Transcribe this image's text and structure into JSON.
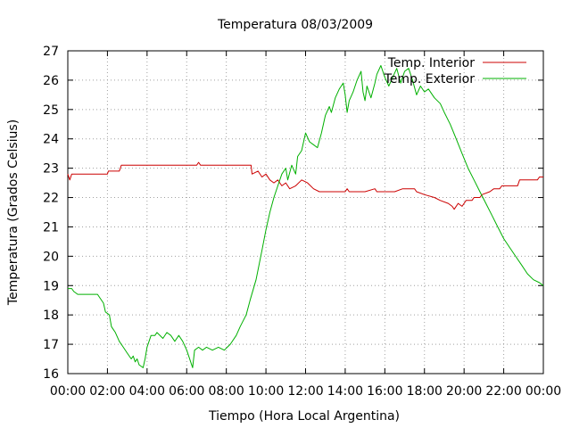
{
  "chart_data": {
    "type": "line",
    "title": "Temperatura 08/03/2009",
    "xlabel": "Tiempo (Hora Local Argentina)",
    "ylabel": "Temperatura (Grados Celsius)",
    "x_unit": "hour of day",
    "xlim": [
      0,
      24
    ],
    "ylim": [
      16,
      27
    ],
    "x_ticks": [
      0,
      2,
      4,
      6,
      8,
      10,
      12,
      14,
      16,
      18,
      20,
      22,
      24
    ],
    "x_tick_labels": [
      "00:00",
      "02:00",
      "04:00",
      "06:00",
      "08:00",
      "10:00",
      "12:00",
      "14:00",
      "16:00",
      "18:00",
      "20:00",
      "22:00",
      "00:00"
    ],
    "y_ticks": [
      16,
      17,
      18,
      19,
      20,
      21,
      22,
      23,
      24,
      25,
      26,
      27
    ],
    "y_tick_labels": [
      "16",
      "17",
      "18",
      "19",
      "20",
      "21",
      "22",
      "23",
      "24",
      "25",
      "26",
      "27"
    ],
    "grid": true,
    "legend_position": "top-right",
    "series": [
      {
        "name": "Temp. Interior",
        "color": "#cc0000",
        "points": [
          [
            0,
            22.8
          ],
          [
            0.1,
            22.6
          ],
          [
            0.2,
            22.8
          ],
          [
            2,
            22.8
          ],
          [
            2.05,
            22.9
          ],
          [
            2.6,
            22.9
          ],
          [
            2.7,
            23.1
          ],
          [
            6.5,
            23.1
          ],
          [
            6.6,
            23.2
          ],
          [
            6.7,
            23.1
          ],
          [
            9.25,
            23.1
          ],
          [
            9.3,
            22.8
          ],
          [
            9.6,
            22.9
          ],
          [
            9.8,
            22.7
          ],
          [
            10.0,
            22.8
          ],
          [
            10.2,
            22.6
          ],
          [
            10.4,
            22.5
          ],
          [
            10.6,
            22.6
          ],
          [
            10.8,
            22.4
          ],
          [
            11.0,
            22.5
          ],
          [
            11.2,
            22.3
          ],
          [
            11.5,
            22.4
          ],
          [
            11.8,
            22.6
          ],
          [
            12.1,
            22.5
          ],
          [
            12.4,
            22.3
          ],
          [
            12.7,
            22.2
          ],
          [
            13.5,
            22.2
          ],
          [
            14.0,
            22.2
          ],
          [
            14.1,
            22.3
          ],
          [
            14.2,
            22.2
          ],
          [
            15.0,
            22.2
          ],
          [
            15.5,
            22.3
          ],
          [
            15.6,
            22.2
          ],
          [
            16.5,
            22.2
          ],
          [
            16.9,
            22.3
          ],
          [
            17.5,
            22.3
          ],
          [
            17.6,
            22.2
          ],
          [
            18.0,
            22.1
          ],
          [
            18.5,
            22.0
          ],
          [
            18.8,
            21.9
          ],
          [
            19.2,
            21.8
          ],
          [
            19.4,
            21.7
          ],
          [
            19.5,
            21.6
          ],
          [
            19.7,
            21.8
          ],
          [
            19.9,
            21.7
          ],
          [
            20.1,
            21.9
          ],
          [
            20.4,
            21.9
          ],
          [
            20.5,
            22.0
          ],
          [
            20.8,
            22.0
          ],
          [
            20.9,
            22.1
          ],
          [
            21.3,
            22.2
          ],
          [
            21.5,
            22.3
          ],
          [
            21.8,
            22.3
          ],
          [
            21.9,
            22.4
          ],
          [
            22.7,
            22.4
          ],
          [
            22.8,
            22.6
          ],
          [
            23.7,
            22.6
          ],
          [
            23.8,
            22.7
          ],
          [
            24.0,
            22.7
          ]
        ]
      },
      {
        "name": "Temp. Exterior",
        "color": "#00b000",
        "points": [
          [
            0,
            18.9
          ],
          [
            0.2,
            18.9
          ],
          [
            0.3,
            18.8
          ],
          [
            0.5,
            18.7
          ],
          [
            1.5,
            18.7
          ],
          [
            1.8,
            18.4
          ],
          [
            1.9,
            18.1
          ],
          [
            2.1,
            18.0
          ],
          [
            2.2,
            17.6
          ],
          [
            2.4,
            17.4
          ],
          [
            2.6,
            17.1
          ],
          [
            2.8,
            16.9
          ],
          [
            3.0,
            16.7
          ],
          [
            3.2,
            16.5
          ],
          [
            3.3,
            16.6
          ],
          [
            3.4,
            16.4
          ],
          [
            3.5,
            16.5
          ],
          [
            3.6,
            16.3
          ],
          [
            3.8,
            16.2
          ],
          [
            3.9,
            16.5
          ],
          [
            4.0,
            16.9
          ],
          [
            4.2,
            17.3
          ],
          [
            4.4,
            17.3
          ],
          [
            4.5,
            17.4
          ],
          [
            4.8,
            17.2
          ],
          [
            5.0,
            17.4
          ],
          [
            5.2,
            17.3
          ],
          [
            5.4,
            17.1
          ],
          [
            5.6,
            17.3
          ],
          [
            5.8,
            17.1
          ],
          [
            6.0,
            16.8
          ],
          [
            6.2,
            16.4
          ],
          [
            6.3,
            16.2
          ],
          [
            6.4,
            16.8
          ],
          [
            6.6,
            16.9
          ],
          [
            6.8,
            16.8
          ],
          [
            7.0,
            16.9
          ],
          [
            7.3,
            16.8
          ],
          [
            7.6,
            16.9
          ],
          [
            7.9,
            16.8
          ],
          [
            8.2,
            17.0
          ],
          [
            8.5,
            17.3
          ],
          [
            8.7,
            17.6
          ],
          [
            9.0,
            18.0
          ],
          [
            9.2,
            18.5
          ],
          [
            9.5,
            19.2
          ],
          [
            9.8,
            20.2
          ],
          [
            10.0,
            20.9
          ],
          [
            10.2,
            21.5
          ],
          [
            10.4,
            22.0
          ],
          [
            10.6,
            22.4
          ],
          [
            10.8,
            22.8
          ],
          [
            11.0,
            23.0
          ],
          [
            11.1,
            22.6
          ],
          [
            11.3,
            23.1
          ],
          [
            11.5,
            22.8
          ],
          [
            11.6,
            23.4
          ],
          [
            11.8,
            23.6
          ],
          [
            12.0,
            24.2
          ],
          [
            12.2,
            23.9
          ],
          [
            12.4,
            23.8
          ],
          [
            12.6,
            23.7
          ],
          [
            12.8,
            24.2
          ],
          [
            13.0,
            24.8
          ],
          [
            13.2,
            25.1
          ],
          [
            13.3,
            24.9
          ],
          [
            13.5,
            25.4
          ],
          [
            13.7,
            25.7
          ],
          [
            13.9,
            25.9
          ],
          [
            14.0,
            25.5
          ],
          [
            14.1,
            24.9
          ],
          [
            14.2,
            25.3
          ],
          [
            14.4,
            25.6
          ],
          [
            14.6,
            26.0
          ],
          [
            14.8,
            26.3
          ],
          [
            14.9,
            25.6
          ],
          [
            15.0,
            25.3
          ],
          [
            15.1,
            25.8
          ],
          [
            15.3,
            25.4
          ],
          [
            15.5,
            25.9
          ],
          [
            15.6,
            26.2
          ],
          [
            15.8,
            26.5
          ],
          [
            16.0,
            26.1
          ],
          [
            16.2,
            25.8
          ],
          [
            16.4,
            26.1
          ],
          [
            16.6,
            26.4
          ],
          [
            16.8,
            25.9
          ],
          [
            17.0,
            26.3
          ],
          [
            17.2,
            26.4
          ],
          [
            17.4,
            26.0
          ],
          [
            17.6,
            25.5
          ],
          [
            17.8,
            25.8
          ],
          [
            18.0,
            25.6
          ],
          [
            18.2,
            25.7
          ],
          [
            18.5,
            25.4
          ],
          [
            18.8,
            25.2
          ],
          [
            19.0,
            24.9
          ],
          [
            19.3,
            24.5
          ],
          [
            19.6,
            24.0
          ],
          [
            19.9,
            23.5
          ],
          [
            20.2,
            23.0
          ],
          [
            20.5,
            22.6
          ],
          [
            20.8,
            22.2
          ],
          [
            21.1,
            21.8
          ],
          [
            21.4,
            21.4
          ],
          [
            21.7,
            21.0
          ],
          [
            22.0,
            20.6
          ],
          [
            22.3,
            20.3
          ],
          [
            22.6,
            20.0
          ],
          [
            22.9,
            19.7
          ],
          [
            23.2,
            19.4
          ],
          [
            23.5,
            19.2
          ],
          [
            23.8,
            19.1
          ],
          [
            24.0,
            19.0
          ]
        ]
      }
    ]
  }
}
